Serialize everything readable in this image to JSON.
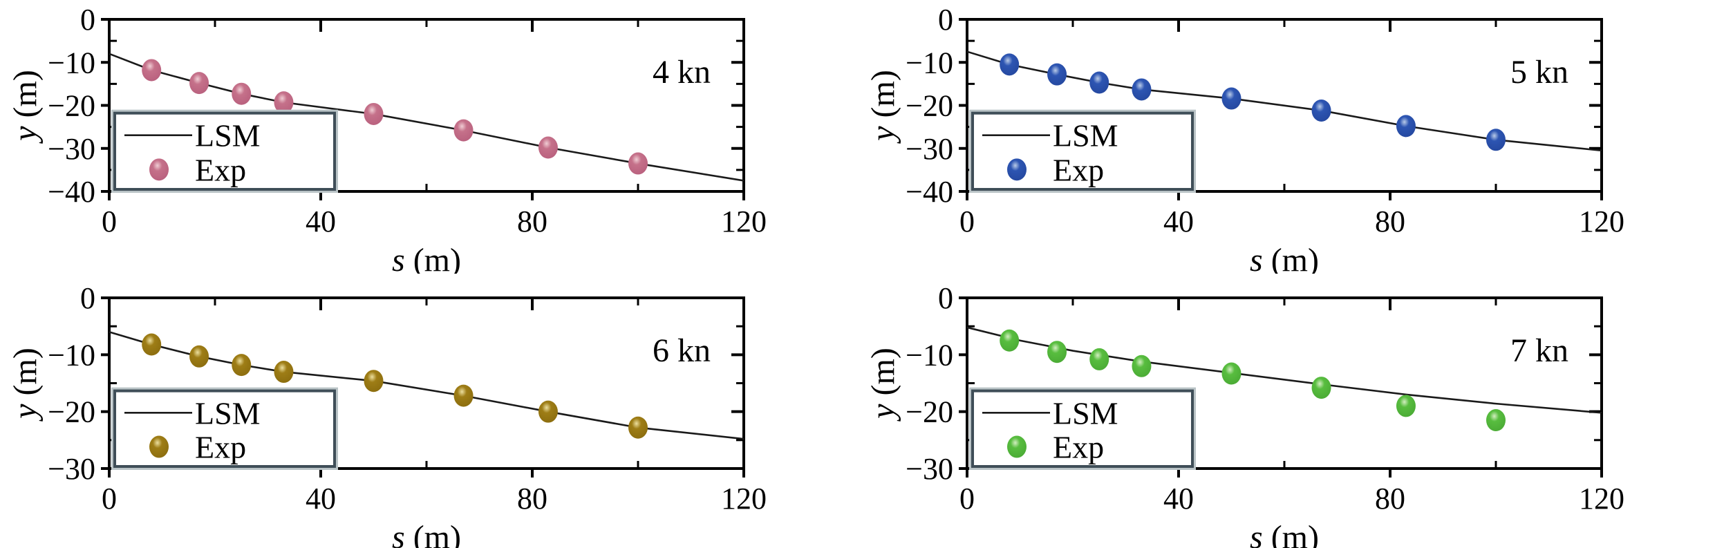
{
  "figure": {
    "background": "#ffffff",
    "legend": {
      "entries": [
        "LSM",
        "Exp"
      ]
    },
    "axis_labels": {
      "x": "s (m)",
      "y": "y (m)"
    }
  },
  "chart_data": [
    {
      "type": "line",
      "title": "4 kn",
      "xlabel": "s (m)",
      "ylabel": "y (m)",
      "xlim": [
        0,
        120
      ],
      "ylim": [
        -40,
        0
      ],
      "xticks": [
        0,
        40,
        80,
        120
      ],
      "xminor": [
        20,
        60,
        100
      ],
      "yticks": [
        0,
        -10,
        -20,
        -30,
        -40
      ],
      "yminor": [
        -5,
        -15,
        -25,
        -35
      ],
      "legend_entries": [
        "LSM",
        "Exp"
      ],
      "legend_position": "lower-left",
      "grid": false,
      "colors": {
        "marker_main": "#c5718a",
        "marker_dark": "#b85f7d",
        "marker_highlight": "#f0cdd4",
        "line": "#1a1a1a"
      },
      "series": [
        {
          "name": "LSM",
          "type": "line",
          "x": [
            0,
            8,
            17,
            25,
            33,
            50,
            67,
            83,
            100,
            120
          ],
          "y": [
            -8,
            -11.8,
            -14.8,
            -17.3,
            -19.3,
            -22,
            -25.8,
            -29.8,
            -33.5,
            -37.5
          ]
        },
        {
          "name": "Exp",
          "type": "scatter",
          "x": [
            8,
            17,
            25,
            33,
            50,
            67,
            83,
            100
          ],
          "y": [
            -11.8,
            -14.8,
            -17.3,
            -19.3,
            -22,
            -25.8,
            -29.8,
            -33.5
          ]
        }
      ]
    },
    {
      "type": "line",
      "title": "5 kn",
      "xlabel": "s (m)",
      "ylabel": "y (m)",
      "xlim": [
        0,
        120
      ],
      "ylim": [
        -40,
        0
      ],
      "xticks": [
        0,
        40,
        80,
        120
      ],
      "xminor": [
        20,
        60,
        100
      ],
      "yticks": [
        0,
        -10,
        -20,
        -30,
        -40
      ],
      "yminor": [
        -5,
        -15,
        -25,
        -35
      ],
      "legend_entries": [
        "LSM",
        "Exp"
      ],
      "legend_position": "lower-left",
      "grid": false,
      "colors": {
        "marker_main": "#2d55b2",
        "marker_dark": "#24479e",
        "marker_highlight": "#b9cbe8",
        "line": "#1a1a1a"
      },
      "series": [
        {
          "name": "LSM",
          "type": "line",
          "x": [
            0,
            8,
            17,
            25,
            33,
            50,
            67,
            83,
            100,
            120
          ],
          "y": [
            -7.5,
            -10.5,
            -12.8,
            -14.7,
            -16.3,
            -18.4,
            -21.2,
            -24.8,
            -28,
            -30.5
          ]
        },
        {
          "name": "Exp",
          "type": "scatter",
          "x": [
            8,
            17,
            25,
            33,
            50,
            67,
            83,
            100
          ],
          "y": [
            -10.5,
            -12.8,
            -14.7,
            -16.3,
            -18.4,
            -21.2,
            -24.8,
            -28
          ]
        }
      ]
    },
    {
      "type": "line",
      "title": "6 kn",
      "xlabel": "s (m)",
      "ylabel": "y (m)",
      "xlim": [
        0,
        120
      ],
      "ylim": [
        -30,
        0
      ],
      "xticks": [
        0,
        40,
        80,
        120
      ],
      "xminor": [
        20,
        60,
        100
      ],
      "yticks": [
        0,
        -10,
        -20,
        -30
      ],
      "yminor": [
        -5,
        -15,
        -25
      ],
      "legend_entries": [
        "LSM",
        "Exp"
      ],
      "legend_position": "lower-left",
      "grid": false,
      "colors": {
        "marker_main": "#9e7d16",
        "marker_dark": "#8a6c0e",
        "marker_highlight": "#ecdf9f",
        "line": "#1a1a1a"
      },
      "series": [
        {
          "name": "LSM",
          "type": "line",
          "x": [
            0,
            8,
            17,
            25,
            33,
            50,
            67,
            83,
            100,
            120
          ],
          "y": [
            -6,
            -8.2,
            -10.3,
            -11.8,
            -13,
            -14.6,
            -17.2,
            -20,
            -22.8,
            -24.8
          ]
        },
        {
          "name": "Exp",
          "type": "scatter",
          "x": [
            8,
            17,
            25,
            33,
            50,
            67,
            83,
            100
          ],
          "y": [
            -8.2,
            -10.3,
            -11.8,
            -13,
            -14.6,
            -17.2,
            -20,
            -22.8
          ]
        }
      ]
    },
    {
      "type": "line",
      "title": "7 kn",
      "xlabel": "s (m)",
      "ylabel": "y (m)",
      "xlim": [
        0,
        120
      ],
      "ylim": [
        -30,
        0
      ],
      "xticks": [
        0,
        40,
        80,
        120
      ],
      "xminor": [
        20,
        60,
        100
      ],
      "yticks": [
        0,
        -10,
        -20,
        -30
      ],
      "yminor": [
        -5,
        -15,
        -25
      ],
      "legend_entries": [
        "LSM",
        "Exp"
      ],
      "legend_position": "lower-left",
      "grid": false,
      "colors": {
        "marker_main": "#58bd3f",
        "marker_dark": "#49a934",
        "marker_highlight": "#d2eec0",
        "line": "#1a1a1a"
      },
      "series": [
        {
          "name": "LSM",
          "type": "line",
          "x": [
            0,
            10,
            20,
            33,
            50,
            67,
            83,
            100,
            120
          ],
          "y": [
            -5.2,
            -7.5,
            -9.3,
            -11.2,
            -13.2,
            -15.2,
            -17,
            -18.6,
            -20.2
          ]
        },
        {
          "name": "Exp",
          "type": "scatter",
          "x": [
            8,
            17,
            25,
            33,
            50,
            67,
            83,
            100
          ],
          "y": [
            -7.5,
            -9.5,
            -10.8,
            -12,
            -13.3,
            -15.8,
            -19,
            -21.5
          ]
        }
      ]
    }
  ],
  "style_colors": {
    "frame": "#000000",
    "text": "#000000",
    "legend_border_dark": "#3f4e58",
    "legend_border_light": "#b9c3c6",
    "legend_fill": "#ffffff"
  }
}
